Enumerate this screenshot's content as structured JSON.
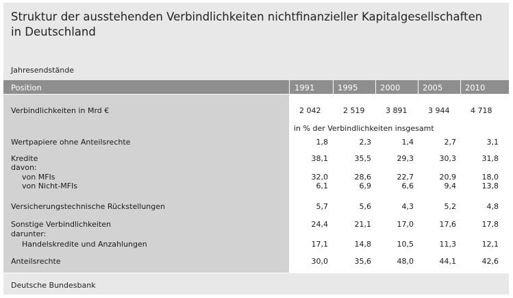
{
  "title_line1": "Struktur der ausstehenden Verbindlichkeiten nichtfinanzieller Kapitalgesellschaften",
  "title_line2": "in Deutschland",
  "subtitle": "Jahresendstände",
  "footer": "Deutsche Bundesbank",
  "header": {
    "position": "Position",
    "years": [
      "1991",
      "1995",
      "2000",
      "2005",
      "2010"
    ]
  },
  "totals": {
    "label": "Verbindlichkeiten in Mrd €",
    "values": [
      "2 042",
      "2 519",
      "3 891",
      "3 944",
      "4 718"
    ]
  },
  "percent_note": "in % der Verbindlichkeiten insgesamt",
  "rows": {
    "wertpapiere": {
      "label": "Wertpapiere ohne Anteilsrechte",
      "values": [
        "1,8",
        "2,3",
        "1,4",
        "2,7",
        "3,1"
      ]
    },
    "kredite": {
      "label": "Kredite",
      "values": [
        "38,1",
        "35,5",
        "29,3",
        "30,3",
        "31,8"
      ]
    },
    "davon": {
      "label": "davon:"
    },
    "von_mfis": {
      "label": "von MFIs",
      "values": [
        "32,0",
        "28,6",
        "22,7",
        "20,9",
        "18,0"
      ]
    },
    "von_nicht_mfis": {
      "label": "von Nicht-MFIs",
      "values": [
        "6,1",
        "6,9",
        "6,6",
        "9,4",
        "13,8"
      ]
    },
    "versicherung": {
      "label": "Versicherungstechnische Rückstellungen",
      "values": [
        "5,7",
        "5,6",
        "4,3",
        "5,2",
        "4,8"
      ]
    },
    "sonstige": {
      "label": "Sonstige Verbindlichkeiten",
      "values": [
        "24,4",
        "21,1",
        "17,0",
        "17,6",
        "17,8"
      ]
    },
    "darunter": {
      "label": "darunter:"
    },
    "handelskredite": {
      "label": "Handelskredite und Anzahlungen",
      "values": [
        "17,1",
        "14,8",
        "10,5",
        "11,3",
        "12,1"
      ]
    },
    "anteilsrechte": {
      "label": "Anteilsrechte",
      "values": [
        "30,0",
        "35,6",
        "48,0",
        "44,1",
        "42,6"
      ]
    }
  }
}
